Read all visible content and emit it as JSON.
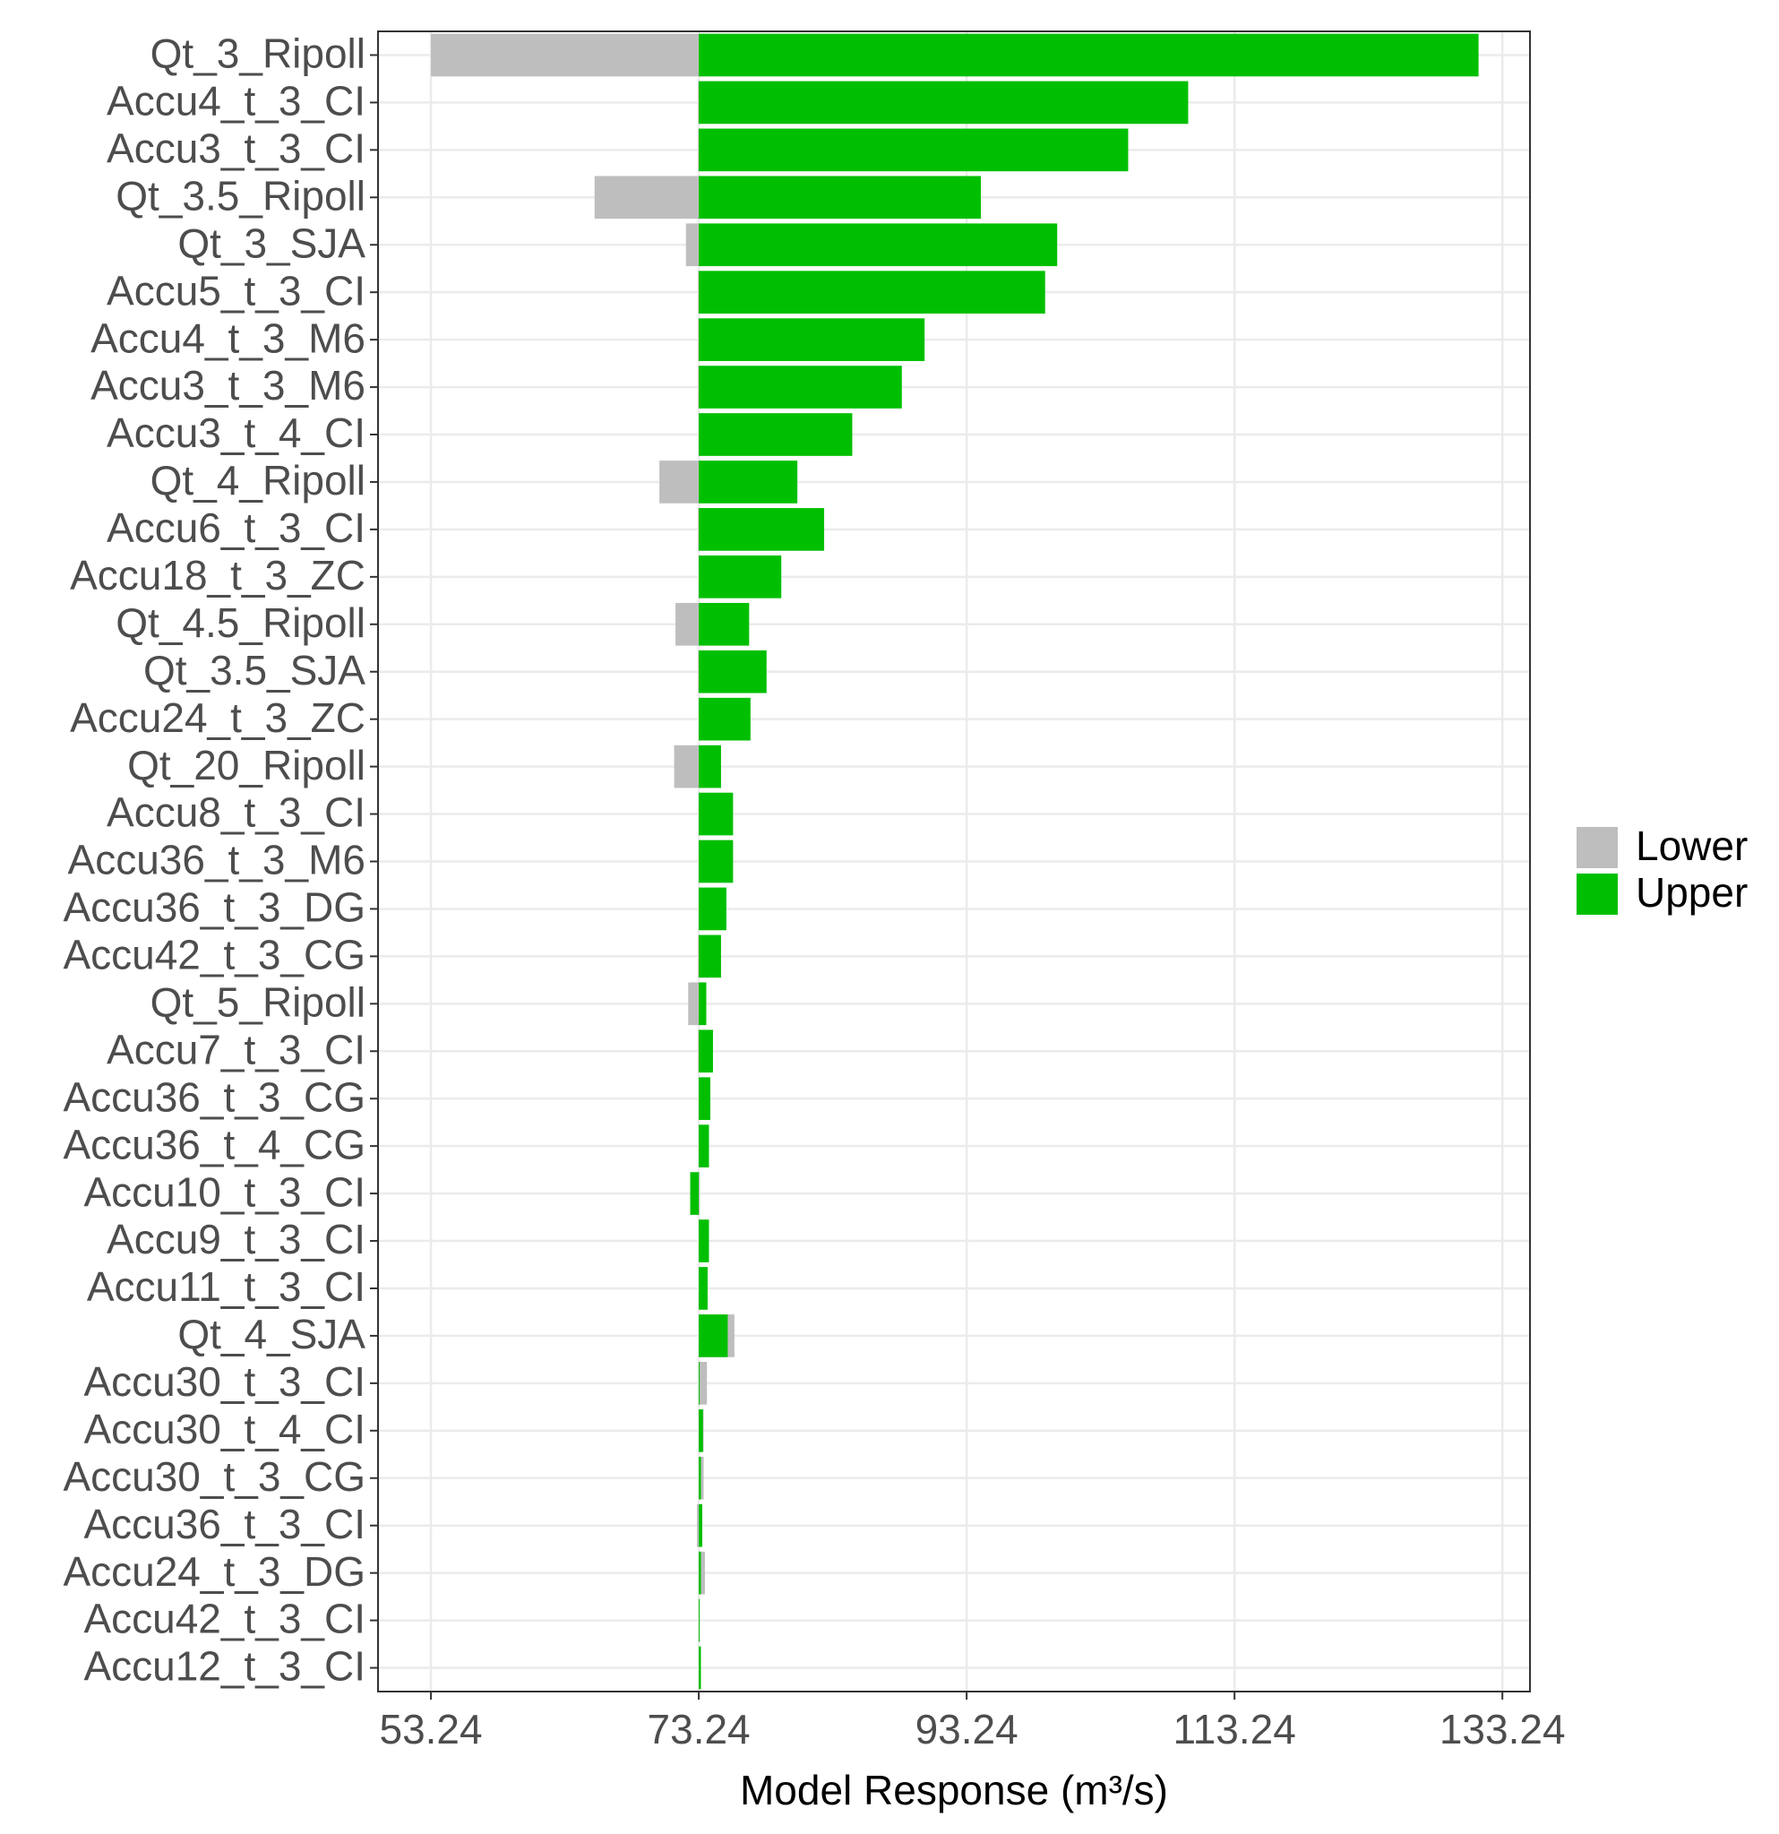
{
  "chart_data": {
    "type": "bar",
    "orientation": "horizontal",
    "x_label": "Model Response (m³/s)",
    "base": 73.24,
    "categories": [
      "Qt_3_Ripoll",
      "Accu4_t_3_CI",
      "Accu3_t_3_CI",
      "Qt_3.5_Ripoll",
      "Qt_3_SJA",
      "Accu5_t_3_CI",
      "Accu4_t_3_M6",
      "Accu3_t_3_M6",
      "Accu3_t_4_CI",
      "Qt_4_Ripoll",
      "Accu6_t_3_CI",
      "Accu18_t_3_ZC",
      "Qt_4.5_Ripoll",
      "Qt_3.5_SJA",
      "Accu24_t_3_ZC",
      "Qt_20_Ripoll",
      "Accu8_t_3_CI",
      "Accu36_t_3_M6",
      "Accu36_t_3_DG",
      "Accu42_t_3_CG",
      "Qt_5_Ripoll",
      "Accu7_t_3_CI",
      "Accu36_t_3_CG",
      "Accu36_t_4_CG",
      "Accu10_t_3_CI",
      "Accu9_t_3_CI",
      "Accu11_t_3_CI",
      "Qt_4_SJA",
      "Accu30_t_3_CI",
      "Accu30_t_4_CI",
      "Accu30_t_3_CG",
      "Accu36_t_3_CI",
      "Accu24_t_3_DG",
      "Accu42_t_3_CI",
      "Accu12_t_3_CI"
    ],
    "series": [
      {
        "name": "Lower",
        "color": "#bebebe",
        "values": [
          53.24,
          73.2,
          73.2,
          65.46,
          72.28,
          73.2,
          73.2,
          73.2,
          73.24,
          70.3,
          73.2,
          73.24,
          71.5,
          73.2,
          73.24,
          71.4,
          73.24,
          73.24,
          73.24,
          73.2,
          72.45,
          73.2,
          73.24,
          73.24,
          73.3,
          73.24,
          73.24,
          75.9,
          73.85,
          73.6,
          73.6,
          73.1,
          73.7,
          73.24,
          73.24
        ]
      },
      {
        "name": "Upper",
        "color": "#00bf00",
        "values": [
          131.46,
          109.78,
          105.3,
          94.3,
          100.0,
          99.1,
          90.1,
          88.4,
          84.7,
          80.6,
          82.6,
          79.4,
          77.0,
          78.3,
          77.1,
          74.9,
          75.8,
          75.8,
          75.3,
          74.9,
          73.8,
          74.3,
          74.1,
          74.0,
          72.6,
          74.0,
          73.9,
          75.4,
          73.3,
          73.55,
          73.4,
          73.5,
          73.4,
          73.3,
          73.4
        ]
      }
    ],
    "xlim": [
      49.29,
      135.3
    ],
    "xticks": [
      53.24,
      73.24,
      93.24,
      113.24,
      133.24
    ],
    "grid": true,
    "legend_position": "right"
  }
}
